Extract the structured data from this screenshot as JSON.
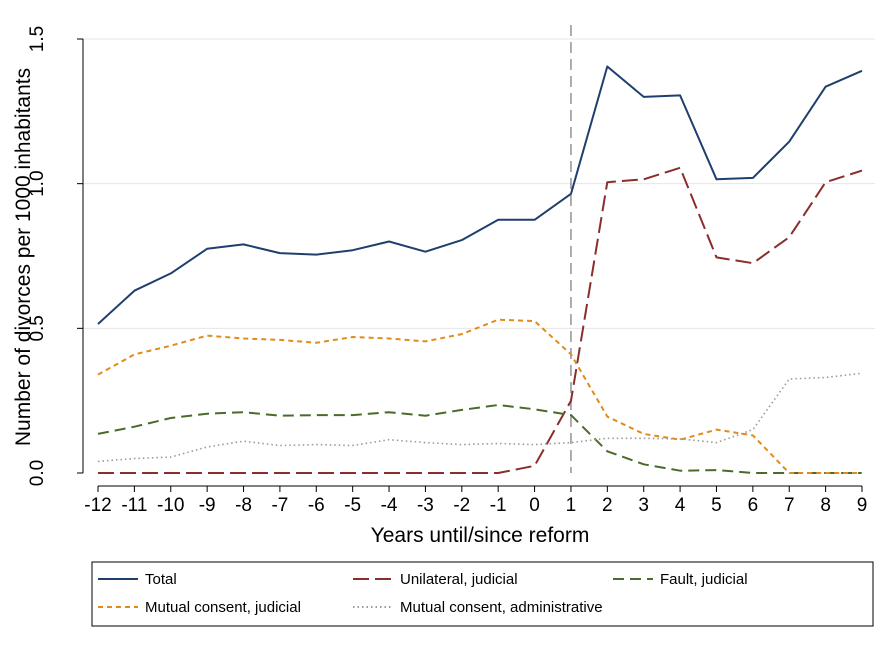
{
  "chart_data": {
    "type": "line",
    "xlabel": "Years until/since reform",
    "ylabel": "Number of divorces per 1000 inhabitants",
    "x": [
      -12,
      -11,
      -10,
      -9,
      -8,
      -7,
      -6,
      -5,
      -4,
      -3,
      -2,
      -1,
      0,
      1,
      2,
      3,
      4,
      5,
      6,
      7,
      8,
      9
    ],
    "xlim": [
      -12,
      9
    ],
    "ylim": [
      0,
      1.5
    ],
    "yticks": [
      0.0,
      0.5,
      1.0,
      1.5
    ],
    "ytick_labels": [
      "0.0",
      "0.5",
      "1.0",
      "1.5"
    ],
    "vline_x": 1,
    "grid": true,
    "legend_position": "bottom",
    "series": [
      {
        "name": "Total",
        "color": "#1f3f6e",
        "dash": "solid",
        "values": [
          0.515,
          0.63,
          0.69,
          0.775,
          0.79,
          0.76,
          0.755,
          0.77,
          0.8,
          0.765,
          0.805,
          0.875,
          0.875,
          0.965,
          1.405,
          1.3,
          1.305,
          1.015,
          1.02,
          1.145,
          1.335,
          1.39
        ]
      },
      {
        "name": "Unilateral, judicial",
        "color": "#8b2d2d",
        "dash": "longdash",
        "values": [
          0,
          0,
          0,
          0,
          0,
          0,
          0,
          0,
          0,
          0,
          0,
          0,
          0.025,
          0.25,
          1.005,
          1.015,
          1.055,
          0.745,
          0.725,
          0.815,
          1.005,
          1.045
        ]
      },
      {
        "name": "Fault, judicial",
        "color": "#4a6b2a",
        "dash": "dash",
        "values": [
          0.135,
          0.16,
          0.19,
          0.205,
          0.21,
          0.198,
          0.2,
          0.2,
          0.21,
          0.198,
          0.218,
          0.235,
          0.22,
          0.2,
          0.075,
          0.03,
          0.008,
          0.01,
          0.0,
          0.0,
          0.0,
          0.0
        ]
      },
      {
        "name": "Mutual consent, judicial",
        "color": "#e08c1b",
        "dash": "shortdash",
        "values": [
          0.34,
          0.41,
          0.44,
          0.475,
          0.465,
          0.46,
          0.45,
          0.47,
          0.465,
          0.455,
          0.48,
          0.53,
          0.525,
          0.41,
          0.195,
          0.135,
          0.115,
          0.15,
          0.13,
          0.0,
          0.0,
          0.0
        ]
      },
      {
        "name": "Mutual consent, administrative",
        "color": "#9a9a9a",
        "dash": "dot",
        "values": [
          0.04,
          0.05,
          0.055,
          0.09,
          0.11,
          0.095,
          0.098,
          0.095,
          0.115,
          0.105,
          0.098,
          0.102,
          0.098,
          0.105,
          0.12,
          0.12,
          0.118,
          0.105,
          0.15,
          0.325,
          0.33,
          0.345
        ]
      }
    ]
  }
}
